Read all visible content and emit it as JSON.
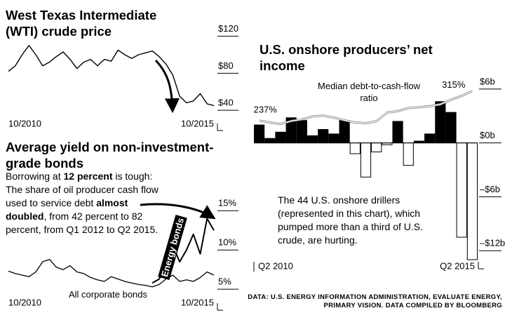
{
  "chart_data": [
    {
      "type": "line",
      "title": "West Texas Intermediate (WTI) crude price",
      "categories": [
        "10/2010",
        null,
        null,
        null,
        null,
        null,
        null,
        null,
        null,
        null,
        null,
        null,
        null,
        null,
        null,
        null,
        null,
        null,
        null,
        null,
        null,
        null,
        null,
        null,
        null,
        null,
        null,
        null,
        null,
        null,
        "10/2015"
      ],
      "values": [
        82,
        88,
        100,
        110,
        100,
        88,
        92,
        98,
        103,
        95,
        85,
        92,
        95,
        88,
        95,
        93,
        105,
        100,
        96,
        100,
        102,
        104,
        98,
        90,
        78,
        55,
        48,
        50,
        58,
        47,
        45
      ],
      "color": "#000000",
      "ylim": [
        34,
        125
      ],
      "yticks": [
        {
          "value": 120,
          "label": "$120"
        },
        {
          "value": 80,
          "label": "$80"
        },
        {
          "value": 40,
          "label": "$40"
        }
      ]
    },
    {
      "type": "line",
      "title": "Average yield on non-investment-grade bonds",
      "annotation": [
        "Borrowing at ",
        "12 percent",
        " is tough: The share of oil producer cash flow used to service debt ",
        "almost doubled",
        ", from 42 percent to 82 percent, from Q1 2012 to Q2 2015."
      ],
      "categories": [
        "10/2010",
        null,
        null,
        null,
        null,
        null,
        null,
        null,
        null,
        null,
        null,
        null,
        null,
        null,
        null,
        null,
        null,
        null,
        null,
        null,
        null,
        null,
        null,
        null,
        null,
        null,
        null,
        null,
        null,
        null,
        "10/2015"
      ],
      "series": [
        {
          "name": "Energy bonds",
          "color": "#000000",
          "values": [
            null,
            null,
            null,
            null,
            null,
            null,
            null,
            null,
            null,
            null,
            null,
            null,
            null,
            null,
            null,
            null,
            null,
            null,
            null,
            null,
            null,
            5.8,
            6.3,
            7.8,
            10.5,
            8.5,
            10.0,
            12.0,
            9.5,
            14.0,
            12.5
          ]
        },
        {
          "name": "All corporate bonds",
          "color": "#000000",
          "values": [
            7.3,
            7.0,
            6.8,
            6.6,
            7.2,
            8.5,
            8.8,
            7.8,
            7.5,
            8.0,
            7.2,
            7.0,
            6.5,
            6.2,
            6.0,
            6.6,
            6.3,
            6.0,
            5.8,
            5.6,
            5.5,
            5.3,
            5.6,
            6.3,
            6.8,
            6.0,
            6.2,
            6.0,
            6.5,
            7.2,
            6.8
          ]
        }
      ],
      "ylim": [
        4.3,
        17.7
      ],
      "yticks": [
        {
          "value": 15,
          "label": "15%"
        },
        {
          "value": 10,
          "label": "10%"
        },
        {
          "value": 5,
          "label": "5%"
        }
      ]
    },
    {
      "type": "bar",
      "title": "U.S. onshore producers’ net income",
      "annotation": "The 44 U.S. onshore drillers (represented in this chart), which pumped more than a third of U.S. crude, are hurting.",
      "source": "DATA: U.S. ENERGY INFORMATION ADMINISTRATION, EVALUATE ENERGY, PRIMARY VISION. DATA COMPILED BY BLOOMBERG",
      "categories": [
        "Q2 2010",
        null,
        null,
        null,
        null,
        null,
        null,
        null,
        null,
        null,
        null,
        null,
        null,
        null,
        null,
        null,
        null,
        null,
        null,
        null,
        "Q2 2015"
      ],
      "values": [
        2.0,
        0.5,
        1.2,
        2.8,
        2.5,
        0.8,
        1.5,
        1.0,
        2.5,
        -1.2,
        -3.8,
        -1.0,
        -0.2,
        2.4,
        -2.5,
        0.2,
        1.0,
        4.6,
        3.4,
        -10.5,
        -13.0
      ],
      "color": "#000000",
      "negative_color": "#ffffff",
      "ylim": [
        -13,
        8.1
      ],
      "yticks": [
        {
          "value": 6,
          "label": "$6b"
        },
        {
          "value": 0,
          "label": "$0b"
        },
        {
          "value": -6,
          "label": "–$6b"
        },
        {
          "value": -12,
          "label": "–$12b"
        }
      ],
      "y2lim": [
        -130,
        370
      ],
      "series": [
        {
          "name": "Median debt-to-cash-flow ratio",
          "axis": "y2",
          "color": "#888888",
          "values": [
            237,
            232,
            228,
            236,
            240,
            248,
            250,
            245,
            238,
            232,
            230,
            235,
            258,
            262,
            270,
            272,
            275,
            280,
            292,
            302,
            315
          ],
          "value_labels": [
            "237%",
            null,
            null,
            null,
            null,
            null,
            null,
            null,
            null,
            null,
            null,
            null,
            null,
            null,
            null,
            null,
            null,
            null,
            null,
            null,
            "315%"
          ]
        }
      ]
    }
  ]
}
